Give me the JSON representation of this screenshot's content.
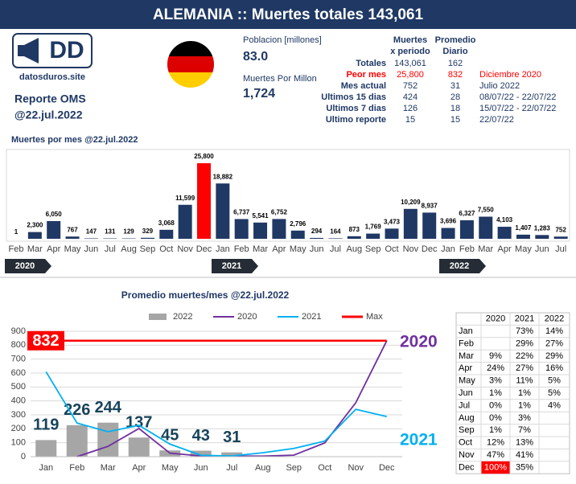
{
  "header": {
    "title": "ALEMANIA :: Muertes totales 143,061"
  },
  "logo": {
    "text": "DD",
    "site": "datosduros.site"
  },
  "report": {
    "source": "Reporte OMS",
    "date": "@22.jul.2022"
  },
  "indicators": [
    {
      "label": "Poblacion [millones]",
      "value": "83.0"
    },
    {
      "label": "Muertes Por Millon",
      "value": "1,724"
    }
  ],
  "summary": {
    "columns": [
      [
        "Muertes",
        "x periodo"
      ],
      [
        "Promedio",
        "Diario"
      ]
    ],
    "highlight_color": "#ff0000",
    "rows": [
      {
        "label": "Totales",
        "total": "143,061",
        "daily": "162",
        "period": null
      },
      {
        "label": "Peor mes",
        "total": "25,800",
        "daily": "832",
        "period": "Diciembre 2020",
        "highlight": true
      },
      {
        "label": "Mes actual",
        "total": "752",
        "daily": "31",
        "period": "Julio 2022"
      },
      {
        "label": "Ultimos 15 dias",
        "total": "424",
        "daily": "28",
        "period": "08/07/22 - 22/07/22"
      },
      {
        "label": "Ultimos 7 dias",
        "total": "126",
        "daily": "18",
        "period": "15/07/22 - 22/07/22"
      },
      {
        "label": "Ultimo reporte",
        "total": "15",
        "daily": "15",
        "period": "22/07/22"
      }
    ]
  },
  "chart_data": [
    {
      "type": "bar",
      "title": "Muertes por mes @22.jul.2022",
      "categories": [
        "Feb",
        "Mar",
        "Apr",
        "May",
        "Jun",
        "Jul",
        "Aug",
        "Sep",
        "Oct",
        "Nov",
        "Dec",
        "Jan",
        "Feb",
        "Mar",
        "Apr",
        "May",
        "Jun",
        "Jul",
        "Aug",
        "Sep",
        "Oct",
        "Nov",
        "Dec",
        "Jan",
        "Feb",
        "Mar",
        "Apr",
        "May",
        "Jun",
        "Jul"
      ],
      "values": [
        1,
        2300,
        6050,
        767,
        147,
        131,
        129,
        329,
        3068,
        11599,
        25800,
        18882,
        6737,
        5541,
        6752,
        2796,
        294,
        164,
        873,
        1769,
        3473,
        10209,
        8937,
        3696,
        6327,
        7550,
        4103,
        1407,
        1283,
        752
      ],
      "value_labels": [
        "1",
        "2,300",
        "6,050",
        "767",
        "147",
        "131",
        "129",
        "329",
        "3,068",
        "11,599",
        "25,800",
        "18,882",
        "6,737",
        "5,541",
        "6,752",
        "2,796",
        "294",
        "164",
        "873",
        "1,769",
        "3,473",
        "10,209",
        "8,937",
        "3,696",
        "6,327",
        "7,550",
        "4,103",
        "1,407",
        "1,283",
        "752"
      ],
      "colors": [
        "#203864",
        "#203864",
        "#203864",
        "#203864",
        "#203864",
        "#203864",
        "#203864",
        "#203864",
        "#203864",
        "#203864",
        "#ff0000",
        "#203864",
        "#203864",
        "#203864",
        "#203864",
        "#203864",
        "#203864",
        "#203864",
        "#203864",
        "#203864",
        "#203864",
        "#203864",
        "#203864",
        "#203864",
        "#203864",
        "#203864",
        "#203864",
        "#203864",
        "#203864",
        "#203864"
      ],
      "year_labels": [
        "2020",
        "2021",
        "2022"
      ]
    },
    {
      "type": "combo",
      "title": "Promedio muertes/mes @22.jul.2022",
      "categories": [
        "Jan",
        "Feb",
        "Mar",
        "Apr",
        "May",
        "Jun",
        "Jul",
        "Aug",
        "Sep",
        "Oct",
        "Nov",
        "Dec"
      ],
      "ylim": [
        0,
        900
      ],
      "yticks": [
        0,
        100,
        200,
        300,
        400,
        500,
        600,
        700,
        800,
        900
      ],
      "grid": true,
      "legend": "top",
      "series": [
        {
          "name": "2022",
          "type": "bar",
          "color": "#a6a6a6",
          "values": [
            119,
            226,
            244,
            137,
            45,
            43,
            31,
            null,
            null,
            null,
            null,
            null
          ]
        },
        {
          "name": "2020",
          "type": "line",
          "color": "#7030a0",
          "values": [
            null,
            0,
            74,
            202,
            25,
            5,
            4,
            4,
            11,
            99,
            387,
            832
          ]
        },
        {
          "name": "2021",
          "type": "line",
          "color": "#00b0f0",
          "values": [
            609,
            241,
            179,
            225,
            90,
            10,
            5,
            28,
            59,
            112,
            340,
            288
          ]
        },
        {
          "name": "Max",
          "type": "line",
          "color": "#ff0000",
          "values": [
            832,
            832,
            832,
            832,
            832,
            832,
            832,
            832,
            832,
            832,
            832,
            832
          ]
        }
      ]
    }
  ],
  "table": {
    "columns": [
      "2020",
      "2021",
      "2022"
    ],
    "highlight_cell": {
      "row": 11,
      "column": 0,
      "color": "#ff0000"
    },
    "rows": [
      {
        "label": "Jan",
        "cells": [
          null,
          "73%",
          "14%"
        ]
      },
      {
        "label": "Feb",
        "cells": [
          null,
          "29%",
          "27%"
        ]
      },
      {
        "label": "Mar",
        "cells": [
          "9%",
          "22%",
          "29%"
        ]
      },
      {
        "label": "Apr",
        "cells": [
          "24%",
          "27%",
          "16%"
        ]
      },
      {
        "label": "May",
        "cells": [
          "3%",
          "11%",
          "5%"
        ]
      },
      {
        "label": "Jun",
        "cells": [
          "1%",
          "1%",
          "5%"
        ]
      },
      {
        "label": "Jul",
        "cells": [
          "0%",
          "1%",
          "4%"
        ]
      },
      {
        "label": "Aug",
        "cells": [
          "0%",
          "3%",
          null
        ]
      },
      {
        "label": "Sep",
        "cells": [
          "1%",
          "7%",
          null
        ]
      },
      {
        "label": "Oct",
        "cells": [
          "12%",
          "13%",
          null
        ]
      },
      {
        "label": "Nov",
        "cells": [
          "47%",
          "41%",
          null
        ]
      },
      {
        "label": "Dec",
        "cells": [
          "100%",
          "35%",
          null
        ]
      }
    ]
  }
}
